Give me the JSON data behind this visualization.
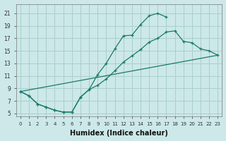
{
  "xlabel": "Humidex (Indice chaleur)",
  "ylabel": "",
  "background_color": "#cce8e8",
  "grid_color": "#aacece",
  "line_color": "#1a7a6a",
  "xlim": [
    -0.5,
    23.5
  ],
  "ylim": [
    4.5,
    22.5
  ],
  "xticks": [
    0,
    1,
    2,
    3,
    4,
    5,
    6,
    7,
    8,
    9,
    10,
    11,
    12,
    13,
    14,
    15,
    16,
    17,
    18,
    19,
    20,
    21,
    22,
    23
  ],
  "yticks": [
    5,
    7,
    9,
    11,
    13,
    15,
    17,
    19,
    21
  ],
  "line1_x": [
    0,
    1,
    2,
    3,
    4,
    5,
    6,
    7,
    8,
    9,
    10,
    11,
    12,
    13,
    14,
    15,
    16,
    17
  ],
  "line1_y": [
    8.5,
    7.8,
    6.5,
    6.0,
    5.5,
    5.2,
    5.2,
    7.6,
    8.8,
    11.2,
    13.0,
    15.3,
    17.4,
    17.5,
    19.2,
    20.6,
    21.0,
    20.4
  ],
  "line2_x": [
    0,
    1,
    2,
    3,
    4,
    5,
    6,
    7,
    8,
    9,
    10,
    11,
    12,
    13,
    14,
    15,
    16,
    17,
    18,
    19,
    20,
    21,
    22,
    23
  ],
  "line2_y": [
    8.5,
    7.8,
    6.5,
    6.0,
    5.5,
    5.2,
    5.2,
    7.6,
    8.8,
    9.5,
    10.5,
    11.8,
    13.2,
    14.2,
    15.2,
    16.4,
    17.0,
    18.0,
    18.2,
    16.5,
    16.3,
    15.3,
    15.0,
    14.3
  ],
  "line3_x": [
    0,
    23
  ],
  "line3_y": [
    8.5,
    14.3
  ]
}
